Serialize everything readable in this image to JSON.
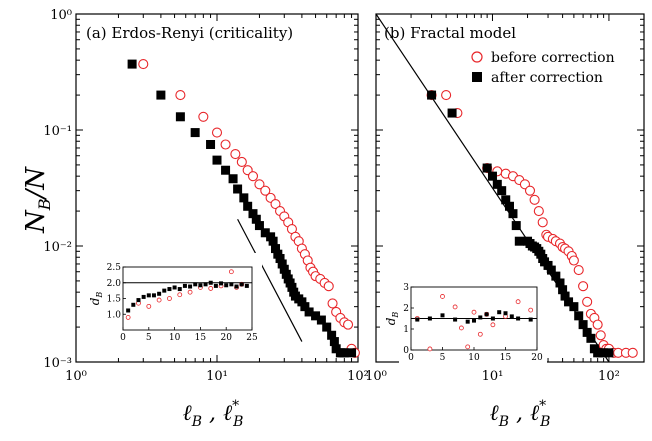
{
  "y_axis_label": {
    "main": "N",
    "sub": "B",
    "sep": "/",
    "tail": "N"
  },
  "x_axis_label": {
    "main": "ℓ",
    "sub": "B",
    "sep": " , ",
    "main2": "ℓ",
    "sup2": "*",
    "sub2": "B"
  },
  "inset_y_label": {
    "main": "d",
    "sub": "B"
  },
  "colors": {
    "before": "#e8262a",
    "after": "#000000",
    "axes": "#000000"
  },
  "chart_data": [
    {
      "type": "scatter",
      "title": "(a) Erdos-Renyi (criticality)",
      "xscale": "log",
      "yscale": "log",
      "xlim": [
        1,
        100
      ],
      "ylim": [
        0.001,
        1
      ],
      "x_ticks": [
        "10⁰",
        "10¹",
        "10²"
      ],
      "y_ticks": [
        "10⁰",
        "10⁻¹",
        "10⁻²",
        "10⁻³"
      ],
      "series": [
        {
          "marker": "open-circle",
          "color": "#e8262a",
          "x": [
            3,
            5.5,
            8,
            10,
            11.5,
            13.5,
            15,
            16.5,
            18,
            20,
            22,
            24,
            26,
            28,
            30,
            32,
            34,
            36,
            38,
            40,
            42,
            44,
            46,
            48,
            50,
            54,
            58,
            62,
            66,
            70,
            75,
            80,
            85,
            90,
            95
          ],
          "y": [
            0.37,
            0.2,
            0.13,
            0.095,
            0.075,
            0.062,
            0.053,
            0.045,
            0.04,
            0.034,
            0.03,
            0.026,
            0.023,
            0.02,
            0.018,
            0.016,
            0.014,
            0.012,
            0.011,
            0.0095,
            0.0085,
            0.0075,
            0.0065,
            0.006,
            0.0055,
            0.0052,
            0.0048,
            0.0045,
            0.0032,
            0.0027,
            0.0024,
            0.0022,
            0.0021,
            0.0013,
            0.0012
          ]
        },
        {
          "marker": "filled-square",
          "color": "#000000",
          "x": [
            2.5,
            4,
            5.5,
            7,
            9,
            10,
            11.5,
            13,
            14,
            15.5,
            16.5,
            18,
            19,
            20,
            22,
            24,
            25,
            26,
            27,
            28,
            29,
            30,
            31,
            32,
            33,
            34,
            35,
            36,
            38,
            40,
            42,
            45,
            50,
            55,
            60,
            65,
            68,
            70,
            75,
            78,
            80,
            90
          ],
          "y": [
            0.37,
            0.2,
            0.13,
            0.095,
            0.075,
            0.055,
            0.045,
            0.038,
            0.031,
            0.026,
            0.022,
            0.019,
            0.017,
            0.015,
            0.013,
            0.012,
            0.011,
            0.0095,
            0.0085,
            0.0078,
            0.007,
            0.0063,
            0.0057,
            0.0052,
            0.0048,
            0.0044,
            0.004,
            0.0037,
            0.0035,
            0.0033,
            0.003,
            0.0027,
            0.0025,
            0.0023,
            0.002,
            0.0017,
            0.0015,
            0.0013,
            0.0012,
            0.0012,
            0.0012,
            0.0012
          ]
        }
      ],
      "guide_line": {
        "x": [
          14,
          40
        ],
        "y": [
          0.017,
          0.0015
        ]
      },
      "inset": {
        "xlim": [
          0,
          25
        ],
        "ylim": [
          0.5,
          2.5
        ],
        "x_ticks": [
          "0",
          "5",
          "10",
          "15",
          "20",
          "25"
        ],
        "y_ticks": [
          "1.0",
          "1.5",
          "2.0",
          "2.5"
        ],
        "reference_y": 2.0,
        "series": [
          {
            "marker": "open-circle",
            "color": "#e8262a",
            "x": [
              1,
              3,
              5,
              7,
              9,
              11,
              13,
              15,
              17,
              19,
              21,
              22,
              23
            ],
            "y": [
              0.9,
              1.35,
              1.25,
              1.45,
              1.5,
              1.62,
              1.7,
              1.85,
              1.82,
              1.9,
              2.35,
              1.85,
              1.95
            ]
          },
          {
            "marker": "filled-square",
            "color": "#000000",
            "x": [
              1,
              2,
              3,
              4,
              5,
              6,
              7,
              8,
              9,
              10,
              11,
              12,
              13,
              14,
              15,
              16,
              17,
              18,
              19,
              20,
              21,
              22,
              23,
              24
            ],
            "y": [
              1.12,
              1.3,
              1.45,
              1.55,
              1.6,
              1.6,
              1.65,
              1.75,
              1.8,
              1.85,
              1.8,
              1.9,
              1.88,
              1.95,
              1.92,
              1.95,
              2.0,
              1.9,
              1.98,
              1.92,
              1.95,
              1.88,
              1.95,
              1.9
            ]
          }
        ]
      }
    },
    {
      "type": "scatter",
      "title": "(b) Fractal model",
      "xscale": "log",
      "yscale": "log",
      "xlim": [
        1,
        200
      ],
      "ylim": [
        0.001,
        1
      ],
      "x_ticks": [
        "10⁰",
        "10¹",
        "10²"
      ],
      "legend": [
        {
          "label": "before correction",
          "marker": "open-circle",
          "color": "#e8262a"
        },
        {
          "label": "after correction",
          "marker": "filled-square",
          "color": "#000000"
        }
      ],
      "legend_position": "top-right",
      "series": [
        {
          "marker": "open-circle",
          "color": "#e8262a",
          "x": [
            3,
            4,
            5,
            9,
            11,
            13,
            15,
            17,
            19,
            21,
            23,
            25,
            27,
            29,
            30,
            33,
            35,
            38,
            40,
            42,
            45,
            48,
            50,
            55,
            60,
            65,
            70,
            75,
            80,
            85,
            90,
            95,
            100,
            110,
            120,
            140,
            160
          ],
          "y": [
            0.2,
            0.2,
            0.14,
            0.047,
            0.044,
            0.042,
            0.04,
            0.037,
            0.034,
            0.03,
            0.025,
            0.02,
            0.016,
            0.0125,
            0.012,
            0.0115,
            0.011,
            0.0105,
            0.0098,
            0.0095,
            0.009,
            0.0082,
            0.0075,
            0.0062,
            0.0045,
            0.0033,
            0.0026,
            0.0024,
            0.0021,
            0.0017,
            0.0014,
            0.0013,
            0.0013,
            0.0012,
            0.0012,
            0.0012,
            0.0012
          ]
        },
        {
          "marker": "filled-square",
          "color": "#000000",
          "x": [
            3,
            4.5,
            9,
            10,
            11,
            12,
            13,
            14,
            15,
            16,
            17,
            20,
            21,
            22,
            23,
            24,
            25,
            26,
            27,
            28,
            30,
            32,
            35,
            38,
            40,
            42,
            45,
            50,
            55,
            60,
            65,
            70,
            75,
            80,
            85,
            90,
            100
          ],
          "y": [
            0.2,
            0.14,
            0.047,
            0.04,
            0.034,
            0.03,
            0.025,
            0.022,
            0.019,
            0.015,
            0.011,
            0.011,
            0.0105,
            0.01,
            0.0098,
            0.0095,
            0.009,
            0.0085,
            0.0078,
            0.0073,
            0.0068,
            0.0062,
            0.0055,
            0.0048,
            0.0042,
            0.0037,
            0.0033,
            0.003,
            0.0025,
            0.0021,
            0.0018,
            0.0016,
            0.0013,
            0.0012,
            0.0012,
            0.0012,
            0.0012
          ]
        }
      ],
      "guide_line": {
        "x": [
          1,
          100
        ],
        "y": [
          1,
          0.001
        ]
      },
      "inset": {
        "xlim": [
          0,
          20
        ],
        "ylim": [
          0,
          3
        ],
        "x_ticks": [
          "0",
          "5",
          "10",
          "15",
          "20"
        ],
        "y_ticks": [
          "0",
          "1",
          "2",
          "3"
        ],
        "reference_y": 1.5,
        "series": [
          {
            "marker": "open-circle",
            "color": "#e8262a",
            "x": [
              1,
              3,
              5,
              7,
              8,
              9,
              10,
              11,
              12,
              13,
              15,
              17,
              19
            ],
            "y": [
              1.5,
              0.05,
              2.55,
              2.05,
              1.05,
              0.15,
              1.8,
              0.75,
              1.7,
              1.2,
              1.6,
              2.3,
              1.9
            ]
          },
          {
            "marker": "filled-square",
            "color": "#000000",
            "x": [
              1,
              3,
              5,
              7,
              9,
              10,
              11,
              12,
              13,
              14,
              15,
              16,
              17,
              19
            ],
            "y": [
              1.45,
              1.5,
              1.65,
              1.45,
              1.35,
              1.4,
              1.55,
              1.7,
              1.5,
              1.8,
              1.75,
              1.6,
              1.5,
              1.45
            ]
          }
        ]
      }
    }
  ]
}
